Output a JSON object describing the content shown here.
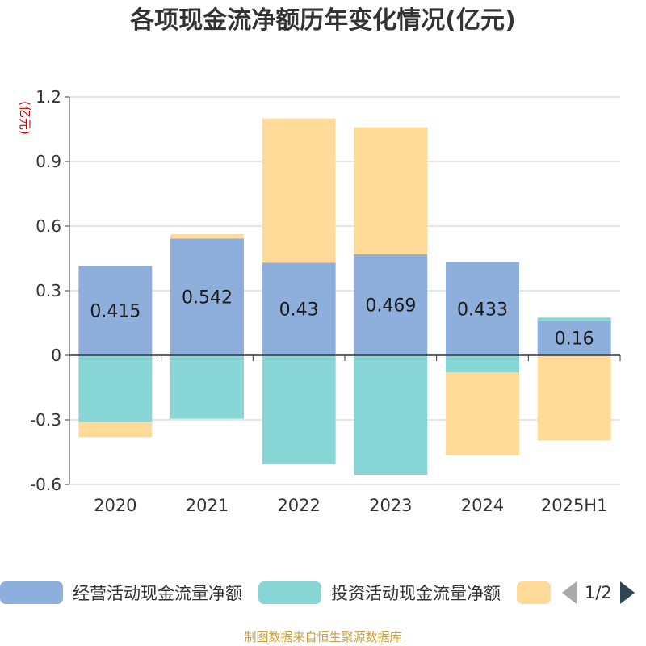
{
  "title": "各项现金流净额历年变化情况(亿元)",
  "source": "制图数据来自恒生聚源数据库",
  "legend_pager": "1/2",
  "chart_data": {
    "type": "bar",
    "stacked": true,
    "title": "各项现金流净额历年变化情况(亿元)",
    "ylabel": "(亿元)",
    "categories": [
      "2020",
      "2021",
      "2022",
      "2023",
      "2024",
      "2025H1"
    ],
    "ylim": [
      -0.6,
      1.2
    ],
    "yticks": [
      1.2,
      0.9,
      0.6,
      0.3,
      0,
      -0.3,
      -0.6
    ],
    "ytick_labels": [
      "1.2",
      "0.9",
      "0.6",
      "0.3",
      "0",
      "-0.3",
      "-0.6"
    ],
    "grid": true,
    "legend_position": "bottom",
    "series": [
      {
        "name": "经营活动现金流量净额",
        "color": "#8eaedb",
        "values": [
          0.415,
          0.542,
          0.43,
          0.469,
          0.433,
          0.16
        ],
        "labels": [
          "0.415",
          "0.542",
          "0.43",
          "0.469",
          "0.433",
          "0.16"
        ]
      },
      {
        "name": "投资活动现金流量净额",
        "color": "#88d5d6",
        "values": [
          -0.31,
          -0.295,
          -0.505,
          -0.555,
          -0.08,
          0.015
        ]
      },
      {
        "name": "",
        "color": "#ffda99",
        "values": [
          -0.07,
          0.02,
          0.67,
          0.59,
          -0.385,
          -0.395
        ]
      }
    ]
  }
}
